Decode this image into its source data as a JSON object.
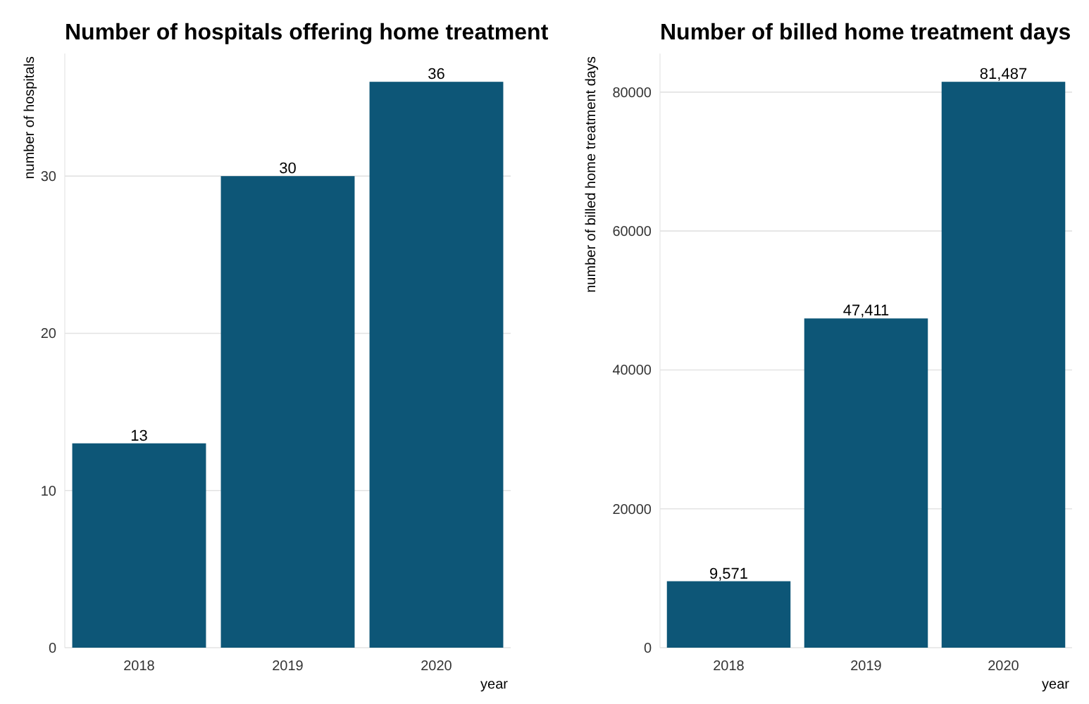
{
  "chart_data": [
    {
      "type": "bar",
      "title": "Number of hospitals offering home treatment",
      "xlabel": "year",
      "ylabel": "number of hospitals",
      "categories": [
        "2018",
        "2019",
        "2020"
      ],
      "values": [
        13,
        30,
        36
      ],
      "color": "#0d5677",
      "value_labels": [
        "13",
        "30",
        "36"
      ],
      "ylim": [
        0,
        37.8
      ],
      "yticks": [
        0,
        10,
        20,
        30
      ],
      "grid": "y"
    },
    {
      "type": "bar",
      "title": "Number of billed home treatment days",
      "xlabel": "year",
      "ylabel": "number of billed home treatment days",
      "categories": [
        "2018",
        "2019",
        "2020"
      ],
      "values": [
        9571,
        47411,
        81487
      ],
      "color": "#0d5677",
      "value_labels": [
        "9,571",
        "47,411",
        "81,487"
      ],
      "ylim": [
        0,
        85561
      ],
      "yticks": [
        0,
        20000,
        40000,
        60000,
        80000
      ],
      "grid": "y"
    }
  ]
}
